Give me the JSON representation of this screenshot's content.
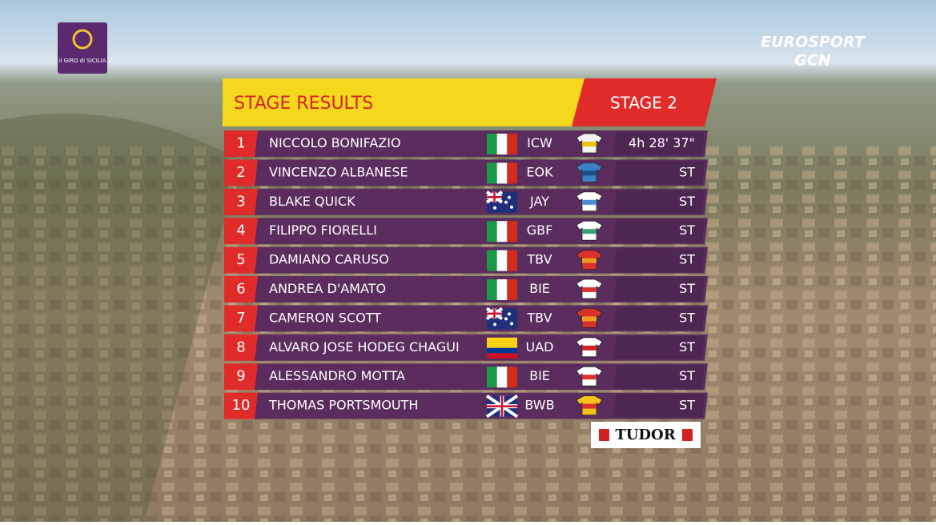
{
  "logos": {
    "race_top": "il GIRO di SICILIA",
    "broadcaster": "EUROSPORT",
    "broadcaster_sub": "GCN",
    "sponsor": "TUDOR"
  },
  "header": {
    "title": "STAGE RESULTS",
    "stage": "STAGE 2"
  },
  "rows": [
    {
      "rank": 1,
      "name": "NICCOLO BONIFAZIO",
      "team": "ICW",
      "time": "4h 28' 37\""
    },
    {
      "rank": 2,
      "name": "VINCENZO ALBANESE",
      "team": "EOK",
      "time": "ST"
    },
    {
      "rank": 3,
      "name": "BLAKE QUICK",
      "team": "JAY",
      "time": "ST"
    },
    {
      "rank": 4,
      "name": "FILIPPO FIORELLI",
      "team": "GBF",
      "time": "ST"
    },
    {
      "rank": 5,
      "name": "DAMIANO CARUSO",
      "team": "TBV",
      "time": "ST"
    },
    {
      "rank": 6,
      "name": "ANDREA D'AMATO",
      "team": "BIE",
      "time": "ST"
    },
    {
      "rank": 7,
      "name": "CAMERON SCOTT",
      "team": "TBV",
      "time": "ST"
    },
    {
      "rank": 8,
      "name": "ALVARO JOSE HODEG CHAGUI",
      "team": "UAD",
      "time": "ST"
    },
    {
      "rank": 9,
      "name": "ALESSANDRO MOTTA",
      "team": "BIE",
      "time": "ST"
    },
    {
      "rank": 10,
      "name": "THOMAS PORTSMOUTH",
      "team": "BWB",
      "time": "ST"
    }
  ]
}
